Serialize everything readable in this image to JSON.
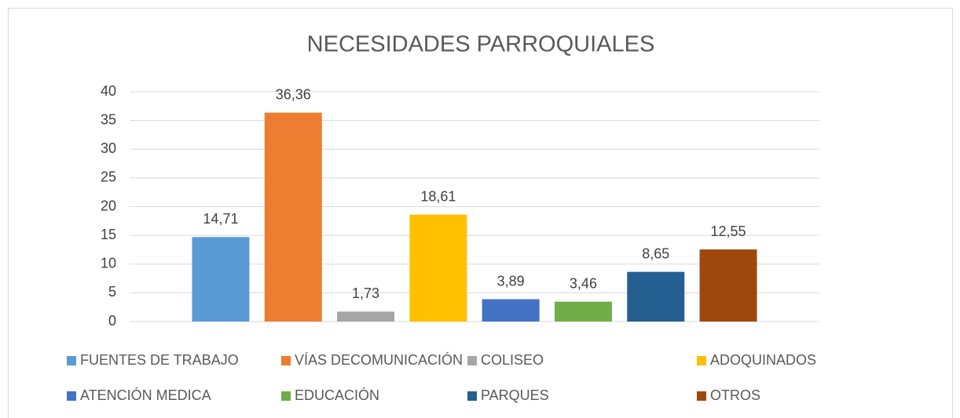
{
  "chart_data": {
    "type": "bar",
    "title": "NECESIDADES PARROQUIALES",
    "ylim": [
      0,
      40
    ],
    "yticks": [
      0,
      5,
      10,
      15,
      20,
      25,
      30,
      35,
      40
    ],
    "grid": true,
    "legend": "bottom",
    "series": [
      {
        "name": "FUENTES DE TRABAJO",
        "color": "#5b9bd5",
        "values": [
          14.71
        ],
        "value_labels": [
          "14,71"
        ]
      },
      {
        "name": "VÍAS DECOMUNICACIÓN",
        "color": "#ed7d31",
        "values": [
          36.36
        ],
        "value_labels": [
          "36,36"
        ]
      },
      {
        "name": "COLISEO",
        "color": "#a5a5a5",
        "values": [
          1.73
        ],
        "value_labels": [
          "1,73"
        ]
      },
      {
        "name": "ADOQUINADOS",
        "color": "#ffc000",
        "values": [
          18.61
        ],
        "value_labels": [
          "18,61"
        ]
      },
      {
        "name": "ATENCIÓN MEDICA",
        "color": "#4472c4",
        "values": [
          3.89
        ],
        "value_labels": [
          "3,89"
        ]
      },
      {
        "name": "EDUCACIÓN",
        "color": "#70ad47",
        "values": [
          3.46
        ],
        "value_labels": [
          "3,46"
        ]
      },
      {
        "name": "PARQUES",
        "color": "#255e91",
        "values": [
          8.65
        ],
        "value_labels": [
          "8,65"
        ]
      },
      {
        "name": "OTROS",
        "color": "#9e480e",
        "values": [
          12.55
        ],
        "value_labels": [
          "12,55"
        ]
      }
    ]
  }
}
